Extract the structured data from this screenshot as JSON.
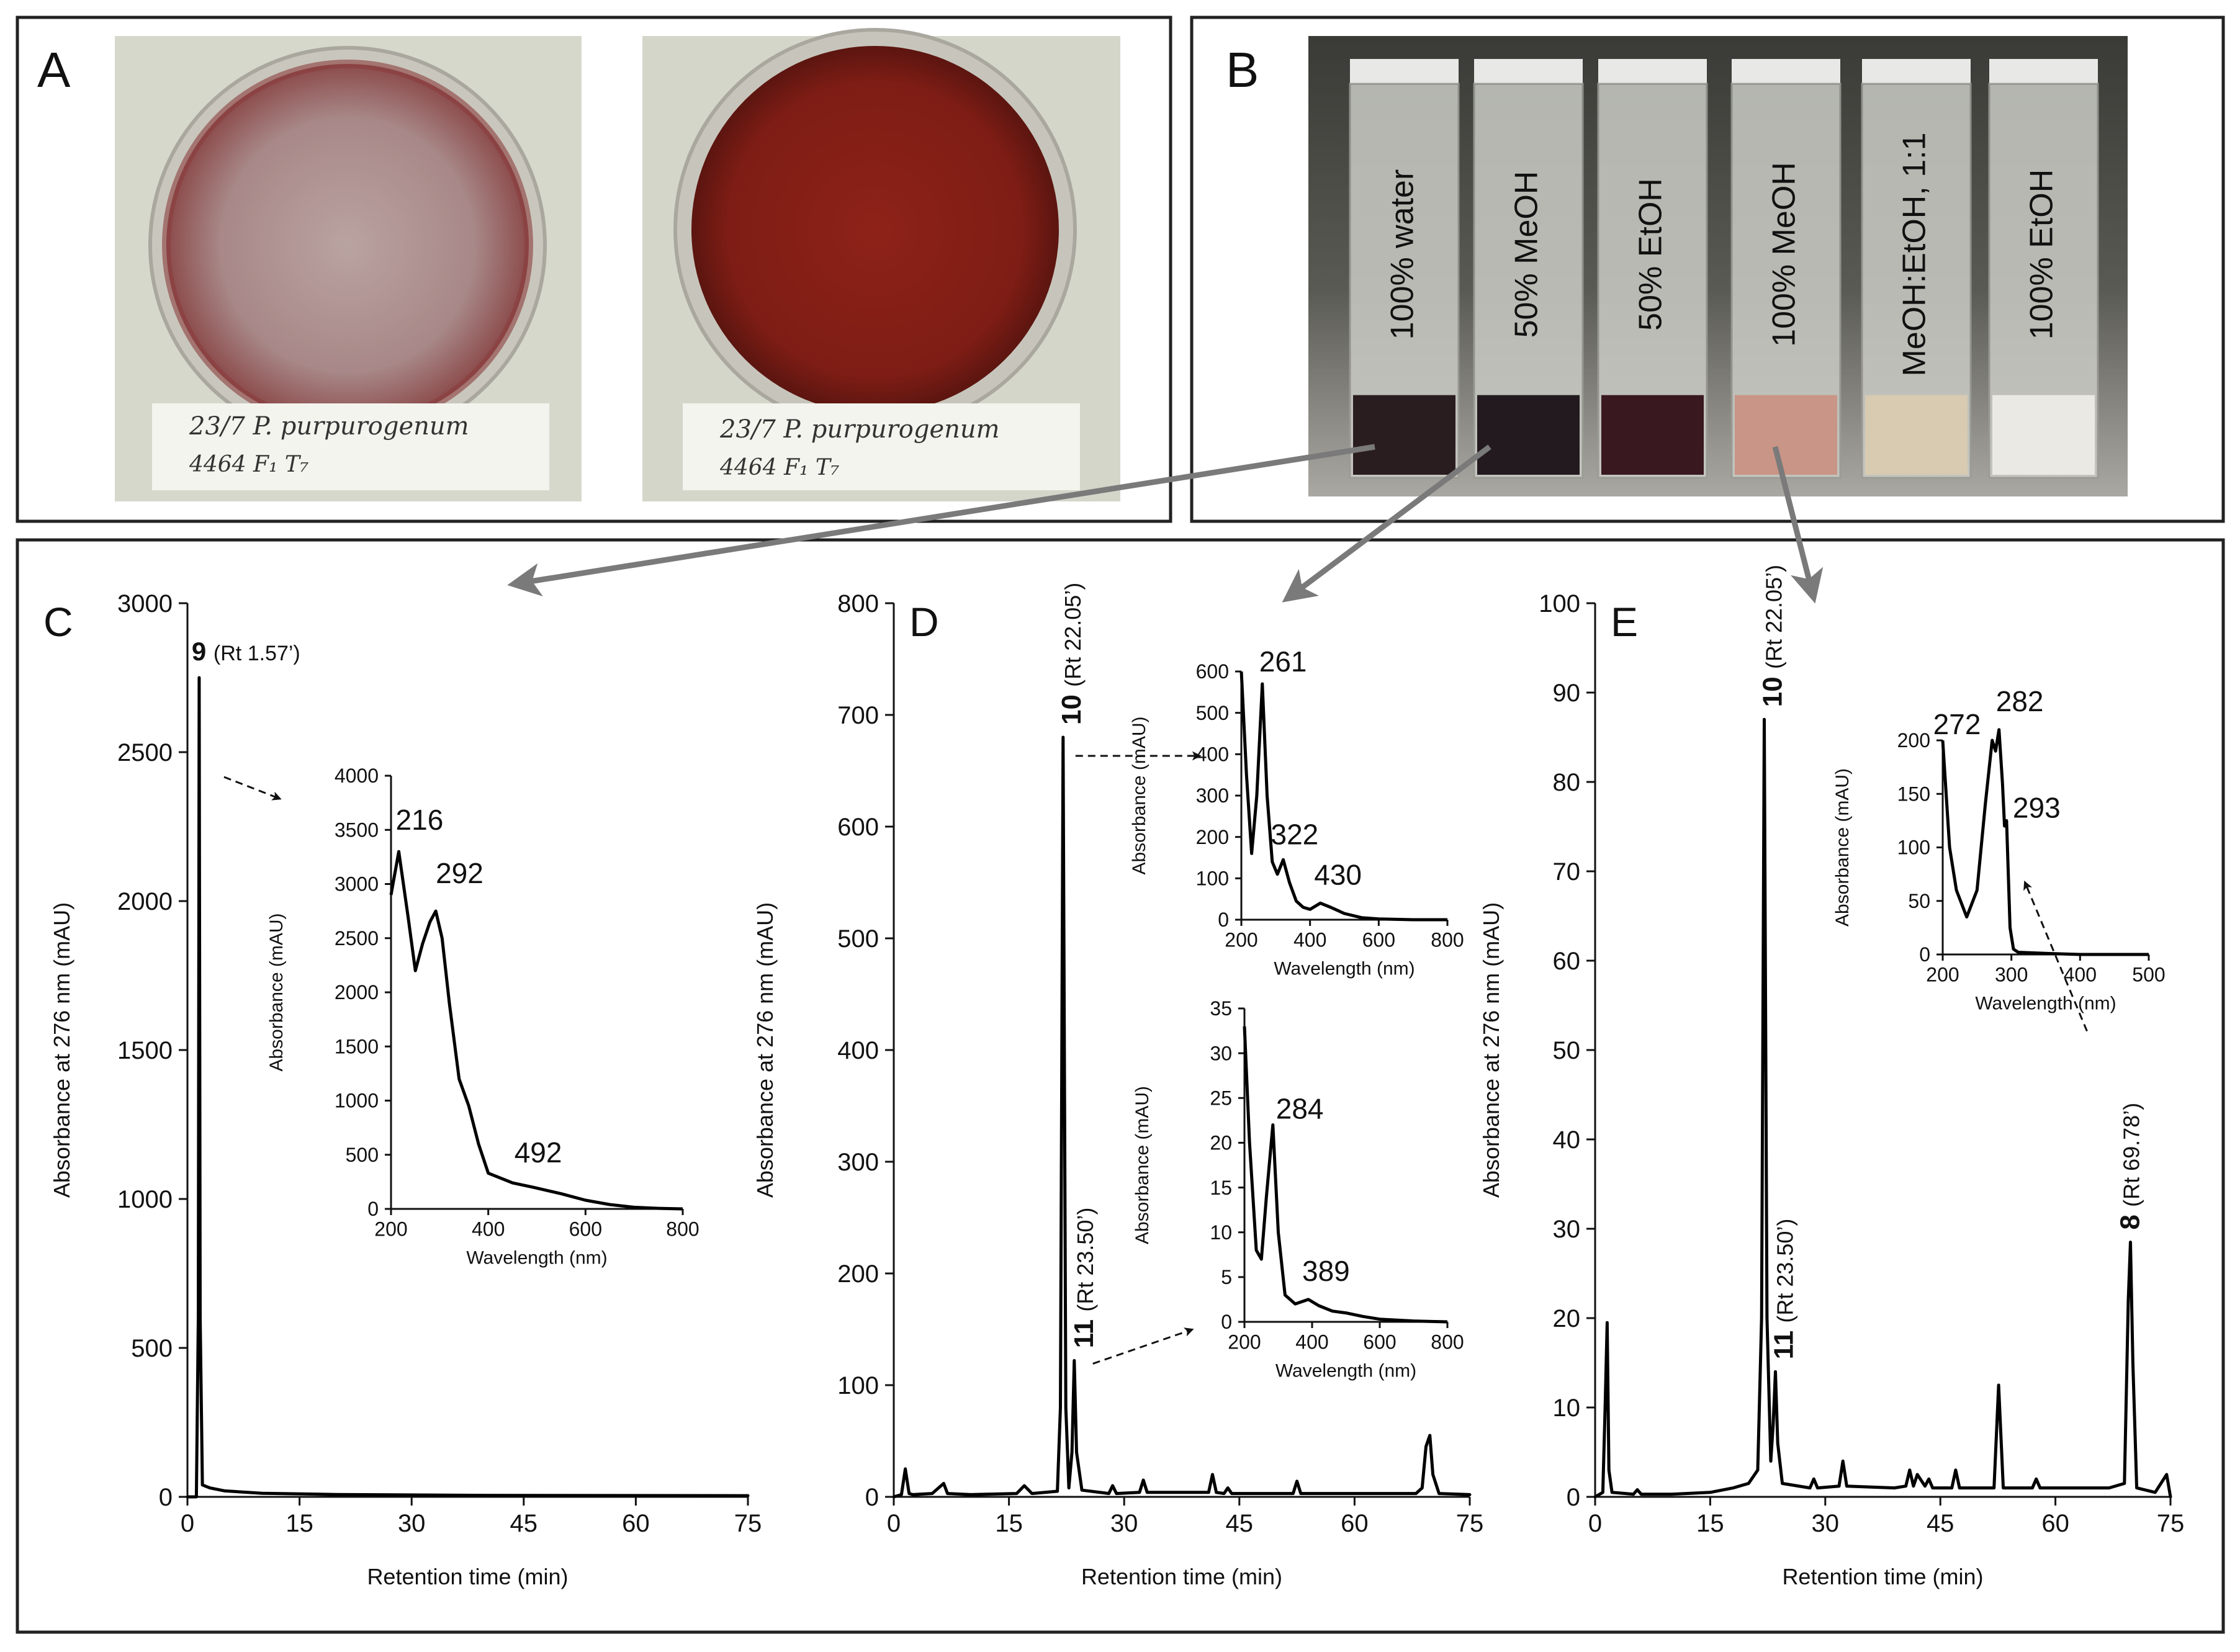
{
  "panel_a": {
    "label": "A",
    "plate_left": {
      "note_line1": "23/7  P. purpurogenum",
      "note_line2": "4464     F₁  T₇"
    },
    "plate_right": {
      "note_line1": "23/7  P. purpurogenum",
      "note_line2": "4464     F₁  T₇"
    }
  },
  "panel_b": {
    "label": "B",
    "vials": [
      {
        "label": "100% water",
        "liquid_color": "#2a1d20",
        "level": 0.21
      },
      {
        "label": "50% MeOH",
        "liquid_color": "#221a1e",
        "level": 0.21
      },
      {
        "label": "50% EtOH",
        "liquid_color": "#3a1820",
        "level": 0.21
      },
      {
        "label": "100% MeOH",
        "liquid_color": "#c99586",
        "level": 0.21
      },
      {
        "label": "MeOH:EtOH, 1:1",
        "liquid_color": "#d8cbb2",
        "level": 0.21
      },
      {
        "label": "100% EtOH",
        "liquid_color": "#ebe9e4",
        "level": 0.21
      }
    ]
  },
  "chart_data": [
    {
      "id": "C",
      "type": "line",
      "panel_label": "C",
      "xlabel": "Retention time (min)",
      "ylabel": "Absorbance at 276 nm (mAU)",
      "xlim": [
        0,
        75
      ],
      "ylim": [
        0,
        3000
      ],
      "xticks": [
        0,
        15,
        30,
        45,
        60,
        75
      ],
      "yticks": [
        0,
        500,
        1000,
        1500,
        2000,
        2500,
        3000
      ],
      "series": [
        {
          "x": [
            0,
            1.2,
            1.45,
            1.57,
            1.7,
            2.0,
            3.0,
            5,
            10,
            20,
            40,
            75
          ],
          "y": [
            0,
            0,
            600,
            2750,
            600,
            40,
            30,
            20,
            12,
            8,
            5,
            4
          ]
        }
      ],
      "annotations": [
        {
          "bold": "9",
          "text": "(Rt 1.57’)",
          "x": 1.57,
          "y": 2750
        }
      ],
      "inset": {
        "xlabel": "Wavelength (nm)",
        "ylabel": "Absorbance (mAU)",
        "xlim": [
          200,
          800
        ],
        "ylim": [
          0,
          4000
        ],
        "xticks": [
          200,
          400,
          600,
          800
        ],
        "yticks": [
          0,
          500,
          1000,
          1500,
          2000,
          2500,
          3000,
          3500,
          4000
        ],
        "x": [
          200,
          216,
          235,
          250,
          265,
          280,
          292,
          305,
          320,
          340,
          360,
          380,
          400,
          450,
          492,
          550,
          600,
          650,
          700,
          750,
          800
        ],
        "y": [
          2900,
          3300,
          2700,
          2200,
          2450,
          2650,
          2750,
          2500,
          1900,
          1200,
          950,
          600,
          330,
          240,
          200,
          140,
          80,
          40,
          15,
          5,
          0
        ],
        "peak_labels": [
          {
            "text": "216",
            "x": 216,
            "y": 3300
          },
          {
            "text": "292",
            "x": 292,
            "y": 2750
          },
          {
            "text": "492",
            "x": 492,
            "y": 200
          }
        ]
      }
    },
    {
      "id": "D",
      "type": "line",
      "panel_label": "D",
      "xlabel": "Retention time (min)",
      "ylabel": "Absorbance at 276 nm (mAU)",
      "xlim": [
        0,
        75
      ],
      "ylim": [
        0,
        800
      ],
      "xticks": [
        0,
        15,
        30,
        45,
        60,
        75
      ],
      "yticks": [
        0,
        100,
        200,
        300,
        400,
        500,
        600,
        700,
        800
      ],
      "series": [
        {
          "x": [
            0,
            1,
            1.5,
            2,
            2.5,
            5,
            6.5,
            7,
            10,
            16,
            17,
            18,
            21.3,
            21.7,
            22.05,
            22.4,
            22.8,
            23.2,
            23.5,
            23.8,
            24.5,
            28,
            28.5,
            29,
            32,
            32.5,
            33,
            41,
            41.5,
            42,
            43,
            43.5,
            44,
            52,
            52.5,
            53,
            68,
            68.8,
            69.3,
            69.8,
            70.2,
            71,
            75
          ],
          "y": [
            0,
            2,
            25,
            3,
            2,
            3,
            12,
            3,
            2,
            3,
            10,
            3,
            5,
            80,
            680,
            80,
            8,
            40,
            122,
            40,
            6,
            3,
            10,
            3,
            4,
            15,
            4,
            4,
            20,
            4,
            3,
            8,
            3,
            3,
            14,
            3,
            3,
            8,
            45,
            55,
            20,
            3,
            2
          ]
        }
      ],
      "annotations": [
        {
          "bold": "10",
          "text": "(Rt 22.05’)",
          "x": 22.05,
          "y": 680
        },
        {
          "bold": "11",
          "text": "(Rt 23.50’)",
          "x": 23.5,
          "y": 122
        }
      ],
      "insets": [
        {
          "xlabel": "Wavelength (nm)",
          "ylabel": "Absorbance (mAU)",
          "xlim": [
            200,
            800
          ],
          "ylim": [
            0,
            600
          ],
          "xticks": [
            200,
            400,
            600,
            800
          ],
          "yticks": [
            0,
            100,
            200,
            300,
            400,
            500,
            600
          ],
          "x": [
            200,
            215,
            230,
            245,
            261,
            275,
            290,
            305,
            322,
            340,
            360,
            380,
            400,
            430,
            460,
            500,
            550,
            600,
            700,
            800
          ],
          "y": [
            600,
            350,
            160,
            300,
            570,
            300,
            140,
            110,
            145,
            90,
            45,
            30,
            25,
            40,
            30,
            15,
            5,
            2,
            0,
            0
          ],
          "peak_labels": [
            {
              "text": "261",
              "x": 261,
              "y": 570
            },
            {
              "text": "322",
              "x": 322,
              "y": 145
            },
            {
              "text": "430",
              "x": 430,
              "y": 40
            }
          ]
        },
        {
          "xlabel": "Wavelength (nm)",
          "ylabel": "Absorbance (mAU)",
          "xlim": [
            200,
            800
          ],
          "ylim": [
            0,
            35
          ],
          "xticks": [
            200,
            400,
            600,
            800
          ],
          "yticks": [
            0,
            5,
            10,
            15,
            20,
            25,
            30,
            35
          ],
          "x": [
            200,
            215,
            235,
            250,
            265,
            284,
            300,
            320,
            350,
            389,
            420,
            460,
            500,
            550,
            600,
            700,
            800
          ],
          "y": [
            33,
            20,
            8,
            7,
            14,
            22,
            10,
            3,
            2,
            2.5,
            1.8,
            1.2,
            1,
            0.6,
            0.3,
            0.1,
            0
          ],
          "peak_labels": [
            {
              "text": "284",
              "x": 284,
              "y": 22
            },
            {
              "text": "389",
              "x": 389,
              "y": 2.5
            }
          ]
        }
      ]
    },
    {
      "id": "E",
      "type": "line",
      "panel_label": "E",
      "xlabel": "Retention time (min)",
      "ylabel": "Absorbance at 276 nm (mAU)",
      "xlim": [
        0,
        75
      ],
      "ylim": [
        0,
        100
      ],
      "xticks": [
        0,
        15,
        30,
        45,
        60,
        75
      ],
      "yticks": [
        0,
        10,
        20,
        30,
        40,
        50,
        60,
        70,
        80,
        90,
        100
      ],
      "series": [
        {
          "x": [
            0,
            1,
            1.3,
            1.57,
            1.8,
            2.2,
            5,
            5.5,
            6,
            10,
            15,
            18,
            20,
            21.2,
            21.7,
            22.05,
            22.4,
            22.9,
            23.2,
            23.5,
            23.8,
            24.4,
            28,
            28.5,
            29,
            31.8,
            32.3,
            32.8,
            39,
            40.5,
            41,
            41.5,
            42,
            43,
            43.5,
            44,
            46.5,
            47,
            47.5,
            52,
            52.6,
            53.2,
            57,
            57.5,
            58,
            67,
            69,
            69.5,
            69.78,
            70.1,
            70.6,
            73,
            74.5,
            75
          ],
          "y": [
            0,
            0.5,
            10,
            19.5,
            3,
            0.5,
            0.3,
            0.8,
            0.3,
            0.3,
            0.5,
            1,
            1.5,
            3,
            20,
            87,
            20,
            4,
            8,
            14,
            6,
            1.5,
            1,
            2,
            1,
            1.2,
            4,
            1.2,
            1,
            1.2,
            3,
            1.2,
            2.5,
            1.2,
            2,
            1,
            1,
            3,
            1,
            1,
            12.5,
            1,
            1,
            2,
            1,
            1,
            1.5,
            22,
            28.5,
            15,
            1,
            0.5,
            2.5,
            0
          ]
        }
      ],
      "annotations": [
        {
          "bold": "10",
          "text": "(Rt 22.05’)",
          "x": 22.05,
          "y": 87
        },
        {
          "bold": "11",
          "text": "(Rt 23.50’)",
          "x": 23.5,
          "y": 14
        },
        {
          "bold": "8",
          "text": "(Rt 69.78’)",
          "x": 69.78,
          "y": 28.5
        }
      ],
      "inset": {
        "xlabel": "Wavelength (nm)",
        "ylabel": "Absorbance (mAU)",
        "xlim": [
          200,
          500
        ],
        "ylim": [
          0,
          200
        ],
        "xticks": [
          200,
          300,
          400,
          500
        ],
        "yticks": [
          0,
          50,
          100,
          150,
          200
        ],
        "x": [
          200,
          210,
          220,
          235,
          250,
          262,
          272,
          277,
          282,
          287,
          290,
          293,
          298,
          303,
          310,
          350,
          400,
          450,
          500
        ],
        "y": [
          200,
          100,
          60,
          35,
          60,
          140,
          200,
          190,
          210,
          160,
          120,
          125,
          25,
          5,
          2,
          1,
          0,
          0,
          0
        ],
        "peak_labels": [
          {
            "text": "272",
            "x": 272,
            "y": 200
          },
          {
            "text": "282",
            "x": 282,
            "y": 210
          },
          {
            "text": "293",
            "x": 293,
            "y": 125
          }
        ]
      }
    }
  ]
}
